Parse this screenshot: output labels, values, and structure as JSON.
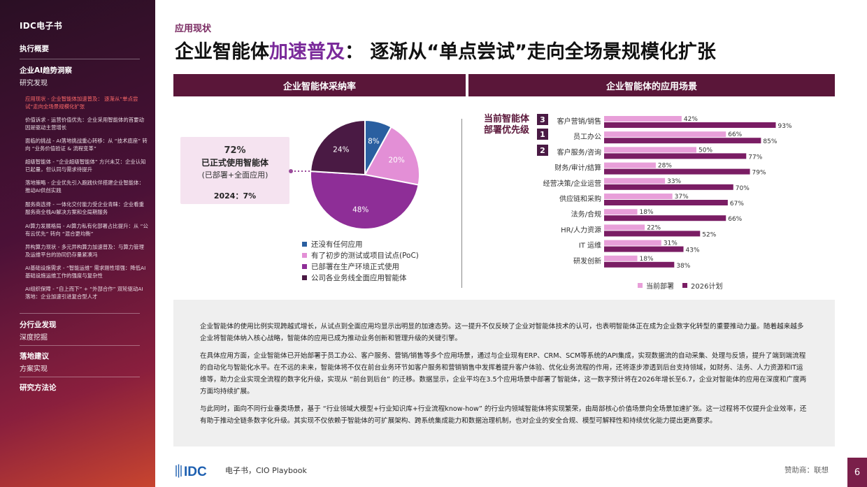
{
  "sidebar": {
    "brand": "IDC电子书",
    "exec_summary": "执行概要",
    "ai_trends": "企业AI趋势洞察",
    "research_findings": "研究发现",
    "nav_items": [
      "应用现状 - 企业智能体加速普及： 逐渐从“单点尝试”走向全场景规模化扩张",
      "价值诉求 - 运营价值优先：企业采用智能体的首要动因是驱动主营增长",
      "面临的挑战 - AI落地挑战重心转移：从 “技术底座” 转向 “业务价值验证 & 流程变革”",
      "超级智能体 - “企业超级智能体” 方兴未艾：企业认知已起量，但认同与需求待提升",
      "落地策略 - 企业优先引入跑践伙伴搭建企业智能体：推动AI供创实践",
      "服务商选择 - 一体化交付能力受企业青睐：企业看重服务商全栈AI解决方案和全局期服务",
      "AI算力发展格局 - AI算力私有化部署占比提升：从 “公有云优先” 转向 “混合更均衡”",
      "异构算力现状 - 多元异构算力加速普及：与算力管理及运维平台的协同仍存量紧凑冯",
      "AI基础设施需求 - “智能运维” 需求刚性增强：降低AI基础设施运维工作的强度与复杂性",
      "AI组织保障 - “自上而下” + “外部合作” 双轮驱动AI落地：企业加速引进复合型人才"
    ],
    "industry_findings": "分行业发现",
    "deep_dive": "深度挖掘",
    "recommendations": "落地建议",
    "plan": "方案实现",
    "methodology": "研究方法论"
  },
  "header": {
    "kicker": "应用现状",
    "title_a": "企业智能体",
    "title_hl": "加速普及",
    "title_b": "： 逐渐从“单点尝试”走向全场景规模化扩张"
  },
  "panels": {
    "left_title": "企业智能体采纳率",
    "right_title": "企业智能体的应用场景"
  },
  "adoption": {
    "pct": "72%",
    "line1": "已正式使用智能体",
    "line2": "(已部署+全面应用)",
    "year_2024": "2024：7%"
  },
  "pie_legend": [
    "还没有任何应用",
    "有了初步的测试或项目试点(PoC)",
    "已部署在生产环境正式使用",
    "公司各业务线全面应用智能体"
  ],
  "bar_section": {
    "priority_label_1": "当前智能体",
    "priority_label_2": "部署优先级",
    "ranks": [
      "3",
      "1",
      "2"
    ],
    "legend": [
      "当前部署",
      "2026计划"
    ]
  },
  "colors": {
    "pie": [
      "#2a5fa0",
      "#e38fd6",
      "#8e2e97",
      "#4a1a44"
    ],
    "bar_current": "#e89fd9",
    "bar_2026": "#7a1d64"
  },
  "chart_data": [
    {
      "type": "pie",
      "labels": [
        "还没有任何应用",
        "有了初步的测试或项目试点(PoC)",
        "已部署在生产环境正式使用",
        "公司各业务线全面应用智能体"
      ],
      "values": [
        8,
        20,
        48,
        24
      ],
      "value_labels": [
        "8%",
        "20%",
        "48%",
        "24%"
      ]
    },
    {
      "type": "bar",
      "categories": [
        "客户营销/销售",
        "员工办公",
        "客户服务/咨询",
        "财务/审计/结算",
        "经营决策/企业运营",
        "供应链和采购",
        "法务/合规",
        "HR/人力资源",
        "IT 运维",
        "研发创新"
      ],
      "series": [
        {
          "name": "当前部署",
          "values": [
            42,
            66,
            50,
            28,
            33,
            37,
            18,
            22,
            31,
            18
          ]
        },
        {
          "name": "2026计划",
          "values": [
            93,
            85,
            77,
            79,
            70,
            67,
            66,
            52,
            43,
            38
          ]
        }
      ],
      "xlim": [
        0,
        100
      ]
    }
  ],
  "body_text": [
    "企业智能体的使用比例实现跨越式增长，从试点到全面应用均显示出明显的加速态势。这一提升不仅反映了企业对智能体技术的认可，也表明智能体正在成为企业数字化转型的重要推动力量。随着越来越多企业将智能体纳入核心战略，智能体的应用已成为推动业务创新和管理升级的关键引擎。",
    "在具体应用方面，企业智能体已开始部署于员工办公、客户服务、营销/销售等多个应用场景，通过与企业现有ERP、CRM、SCM等系统的API集成，实现数据流的自动采集、处理与反馈，提升了端到端流程的自动化与智能化水平。在不远的未来，智能体将不仅在前台业务环节如客户服务和营销销售中发挥着提升客户体验、优化业务流程的作用，还将逐步渗透到后台支持领域，如财务、法务、人力资源和IT运维等，助力企业实现全流程的数字化升级，实现从 “前台到后台” 的迁移。数据显示，企业平均在3.5个应用场景中部署了智能体，这一数字预计将在2026年增长至6.7，企业对智能体的应用在深度和广度两方面均持续扩展。",
    "与此同时，面向不同行业垂类场景，基于 “行业领域大模型+行业知识库+行业流程know-how” 的行业内领域智能体将实现繁荣，由局部核心价值场景向全场景加速扩张。这一过程将不仅提升企业效率，还有助于推动全链条数字化升级。其实现不仅依赖于智能体的可扩展架构、跨系统集成能力和数据治理机制，也对企业的安全合规、模型可解释性和持续优化能力提出更高要求。"
  ],
  "footer": {
    "logo": "IDC",
    "left": "电子书，CIO Playbook",
    "right": "赞助商：联想",
    "page": "6"
  }
}
